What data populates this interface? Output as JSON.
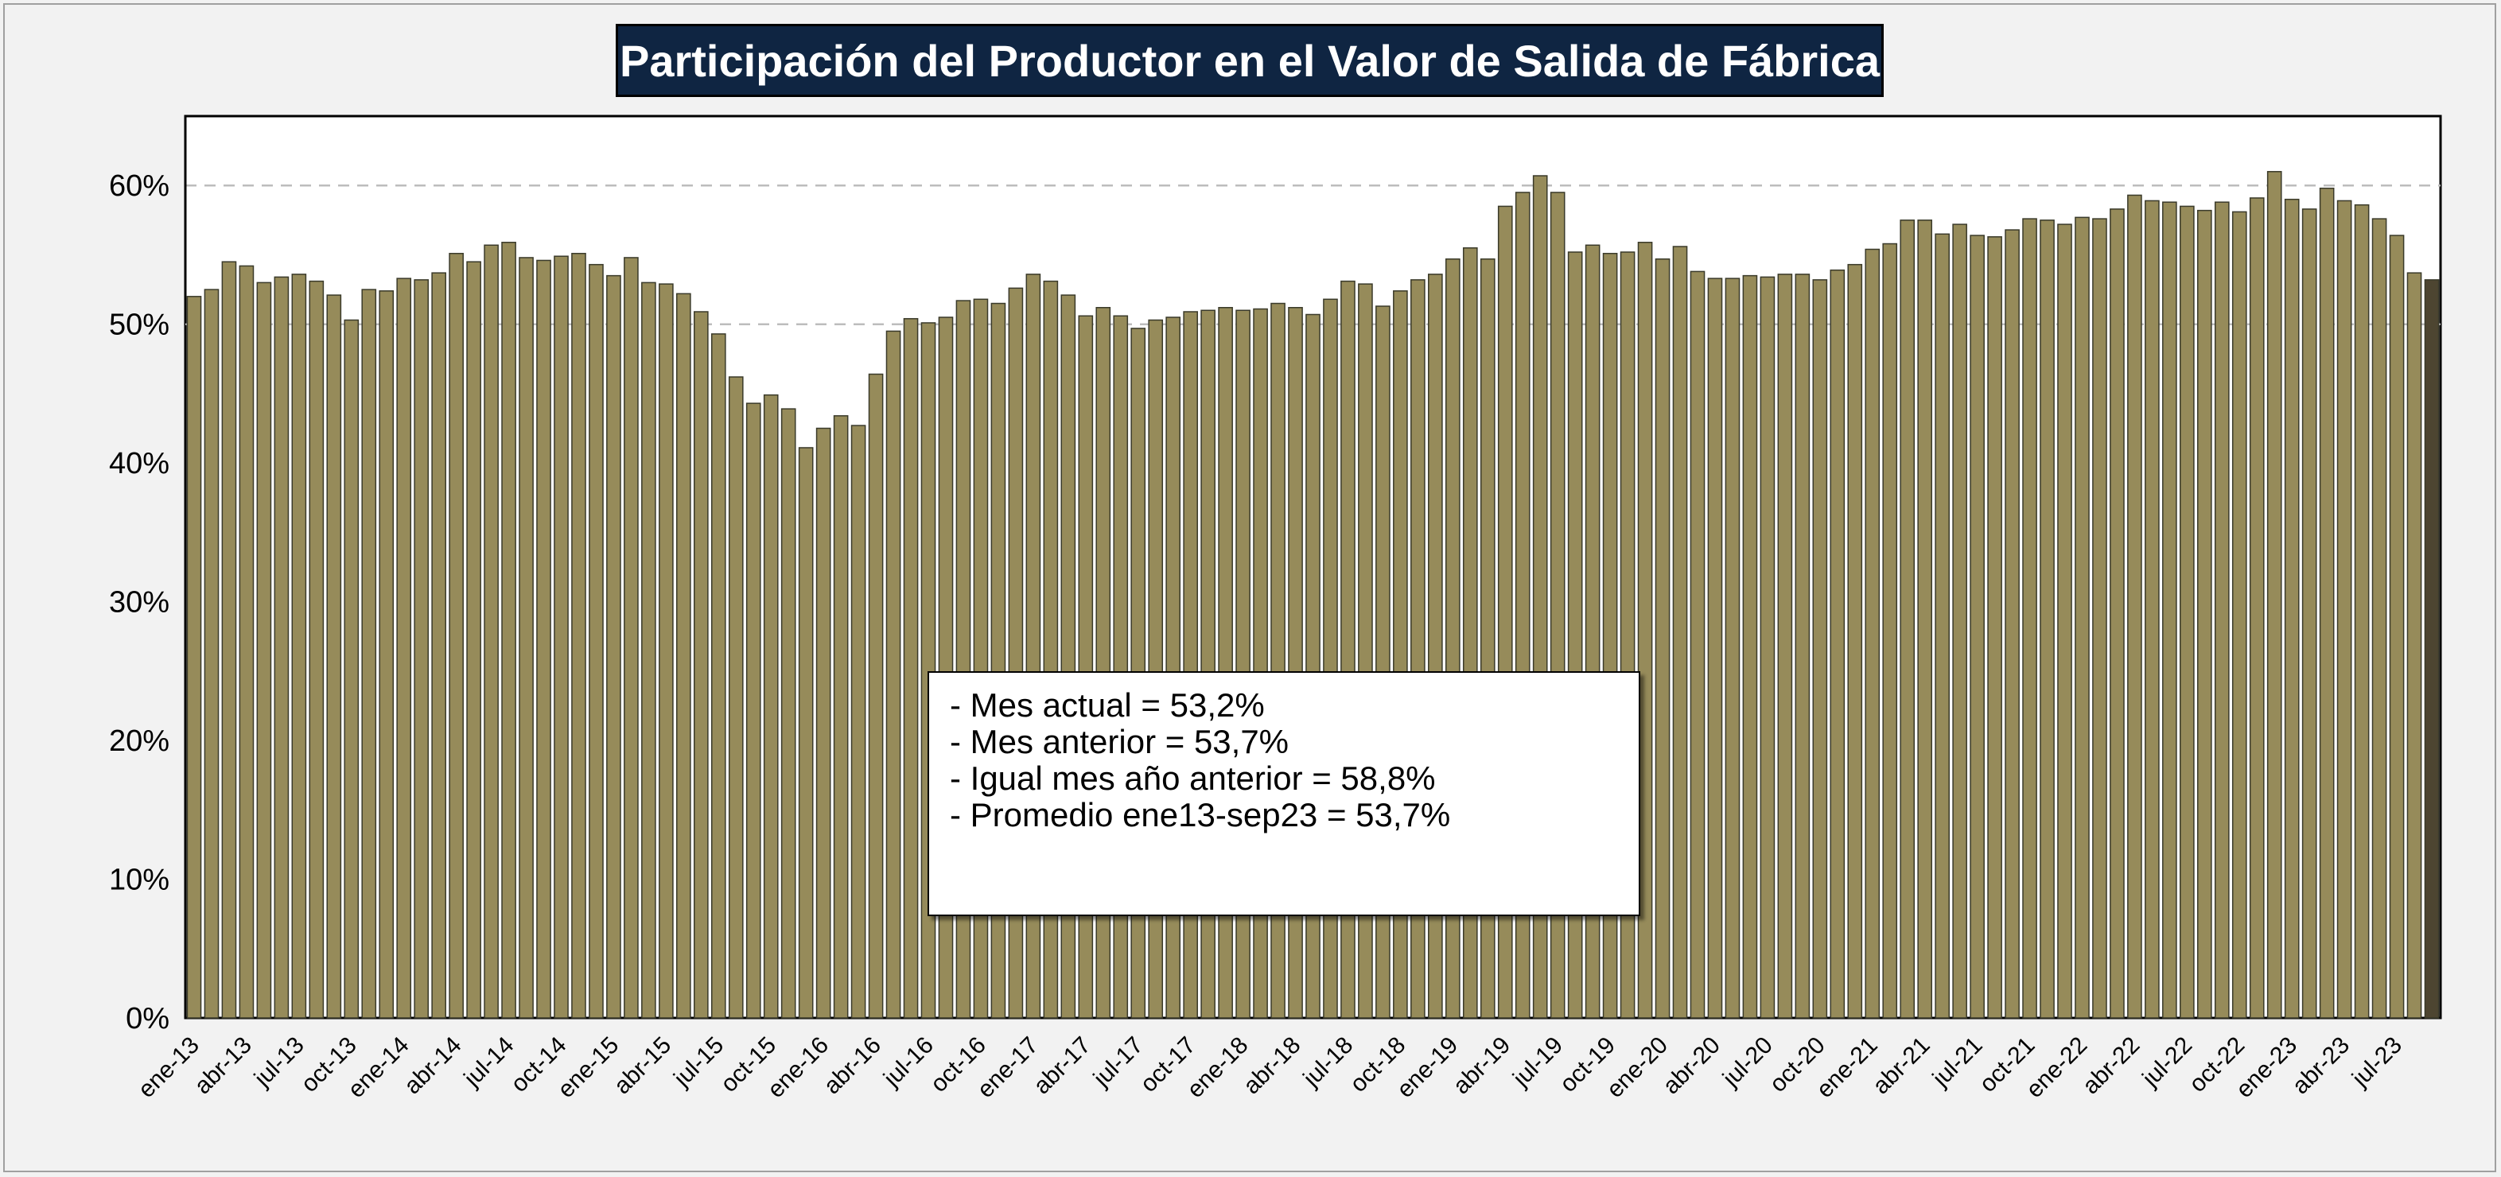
{
  "title": "Participación del Productor en el Valor de Salida de Fábrica",
  "info_box": {
    "lines": [
      "- Mes actual = 53,2%",
      "- Mes anterior = 53,7%",
      "- Igual mes año anterior = 58,8%",
      "- Promedio ene13-sep23 = 53,7%"
    ]
  },
  "colors": {
    "bar": "#968b5a",
    "bar_last": "#4d4531",
    "title_bg": "#0f2542",
    "title_text": "#ffffff",
    "plot_bg": "#ffffff",
    "page_bg": "#f2f2f2"
  },
  "chart_data": {
    "type": "bar",
    "title": "Participación del Productor en el Valor de Salida de Fábrica",
    "xlabel": "",
    "ylabel": "",
    "ylim": [
      0,
      65
    ],
    "yticks": [
      "0%",
      "10%",
      "20%",
      "30%",
      "40%",
      "50%",
      "60%"
    ],
    "ytick_values": [
      0,
      10,
      20,
      30,
      40,
      50,
      60
    ],
    "dashed_gridlines_at": [
      50,
      60
    ],
    "x_tick_labels": [
      "ene-13",
      "abr-13",
      "jul-13",
      "oct-13",
      "ene-14",
      "abr-14",
      "jul-14",
      "oct-14",
      "ene-15",
      "abr-15",
      "jul-15",
      "oct-15",
      "ene-16",
      "abr-16",
      "jul-16",
      "oct-16",
      "ene-17",
      "abr-17",
      "jul-17",
      "oct-17",
      "ene-18",
      "abr-18",
      "jul-18",
      "oct-18",
      "ene-19",
      "abr-19",
      "jul-19",
      "oct-19",
      "ene-20",
      "abr-20",
      "jul-20",
      "oct-20",
      "ene-21",
      "abr-21",
      "jul-21",
      "oct-21",
      "ene-22",
      "abr-22",
      "jul-22",
      "oct-22",
      "ene-23",
      "abr-23",
      "jul-23"
    ],
    "x_tick_every_n_months": 3,
    "first_month": "ene-13",
    "last_month": "sep-23",
    "highlight_last_bar": true,
    "values": [
      52.0,
      52.5,
      54.5,
      54.2,
      53.0,
      53.4,
      53.6,
      53.1,
      52.1,
      50.3,
      52.5,
      52.4,
      53.3,
      53.2,
      53.7,
      55.1,
      54.5,
      55.7,
      55.9,
      54.8,
      54.6,
      54.9,
      55.1,
      54.3,
      53.5,
      54.8,
      53.0,
      52.9,
      52.2,
      50.9,
      49.3,
      46.2,
      44.3,
      44.9,
      43.9,
      41.1,
      42.5,
      43.4,
      42.7,
      46.4,
      49.5,
      50.4,
      50.1,
      50.5,
      51.7,
      51.8,
      51.5,
      52.6,
      53.6,
      53.1,
      52.1,
      50.6,
      51.2,
      50.6,
      49.7,
      50.3,
      50.5,
      50.9,
      51.0,
      51.2,
      51.0,
      51.1,
      51.5,
      51.2,
      50.7,
      51.8,
      53.1,
      52.9,
      51.3,
      52.4,
      53.2,
      53.6,
      54.7,
      55.5,
      54.7,
      58.5,
      59.5,
      60.7,
      59.5,
      55.2,
      55.7,
      55.1,
      55.2,
      55.9,
      54.7,
      55.6,
      53.8,
      53.3,
      53.3,
      53.5,
      53.4,
      53.6,
      53.6,
      53.2,
      53.9,
      54.3,
      55.4,
      55.8,
      57.5,
      57.5,
      56.5,
      57.2,
      56.4,
      56.3,
      56.8,
      57.6,
      57.5,
      57.2,
      57.7,
      57.6,
      58.3,
      59.3,
      58.9,
      58.8,
      58.5,
      58.2,
      58.8,
      58.1,
      59.1,
      61.0,
      59.0,
      58.3,
      59.8,
      58.9,
      58.6,
      57.6,
      56.4,
      53.7,
      53.2
    ]
  }
}
